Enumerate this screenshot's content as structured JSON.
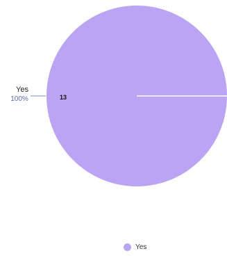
{
  "chart_data": {
    "type": "pie",
    "slices": [
      {
        "label": "Yes",
        "value": 13,
        "percent": "100%",
        "color": "#bca4f4"
      }
    ],
    "legend": {
      "items": [
        "Yes"
      ],
      "position": "bottom"
    },
    "colors": {
      "outer_label": "#222222",
      "outer_percent": "#5b6ea8",
      "leader_line": "#7d8fc4",
      "value_label": "#111111",
      "slice_border": "#ffffff"
    }
  }
}
